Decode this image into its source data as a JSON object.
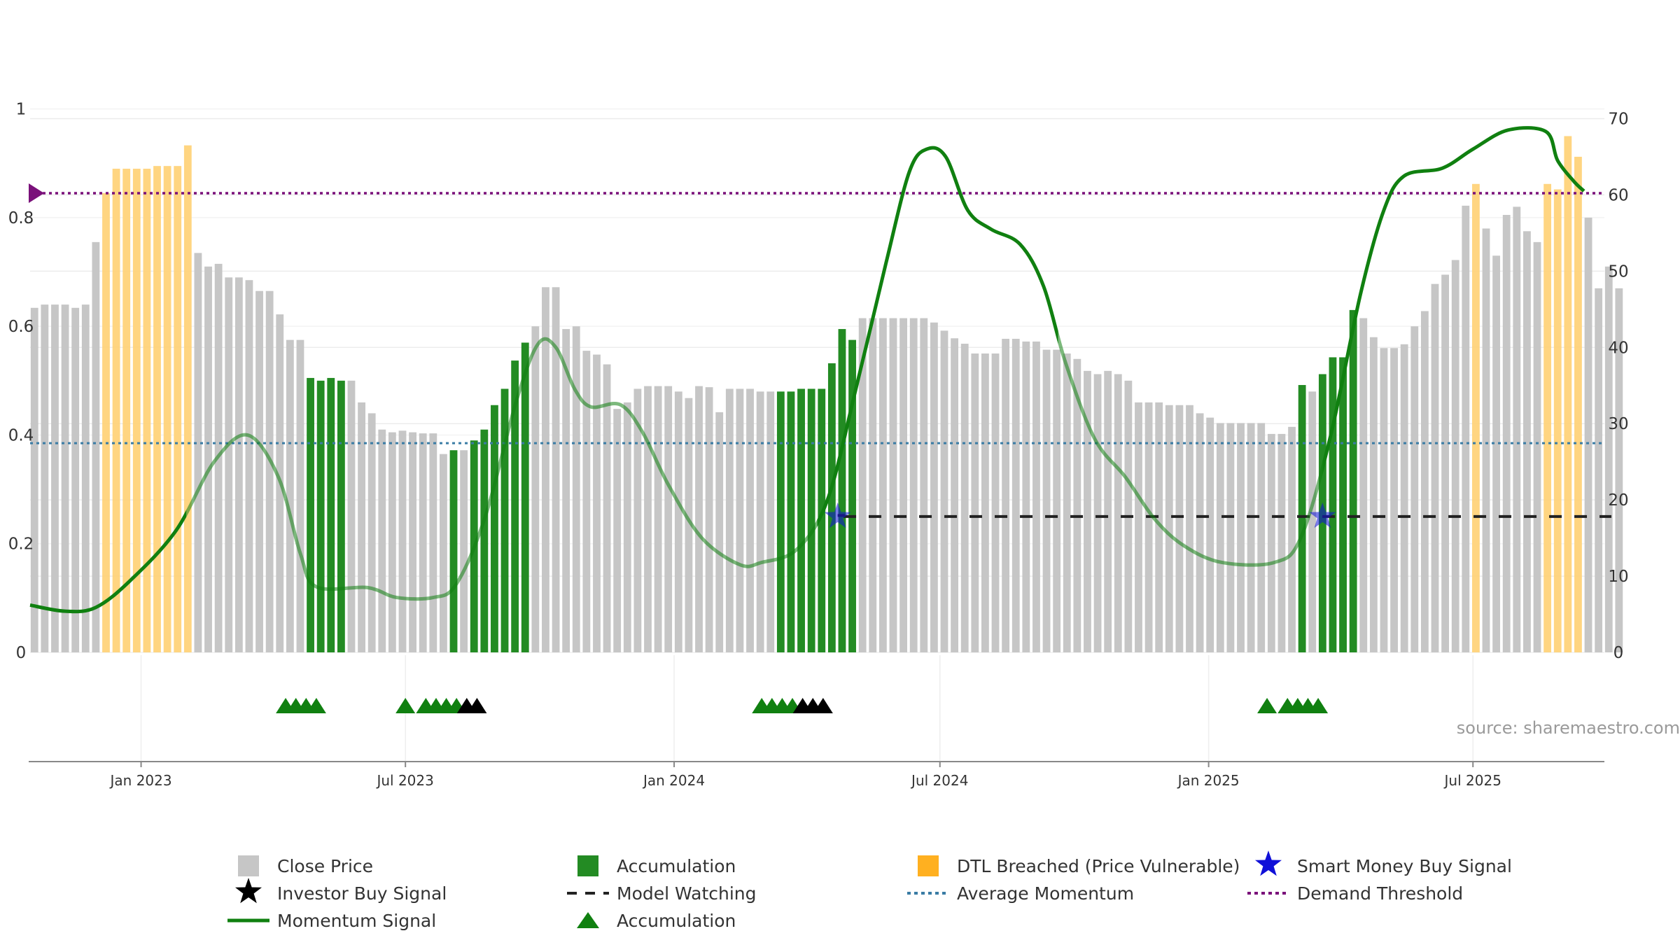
{
  "chart_data": {
    "type": "bar",
    "left_axis": {
      "ticks": [
        "0",
        "0.2",
        "0.4",
        "0.6",
        "0.8",
        "1"
      ],
      "values": [
        0,
        0.2,
        0.4,
        0.6,
        0.8,
        1
      ],
      "range": [
        0,
        1.1
      ]
    },
    "right_axis": {
      "ticks": [
        "0",
        "10",
        "20",
        "30",
        "40",
        "50",
        "60",
        "70"
      ],
      "values": [
        0,
        10,
        20,
        30,
        40,
        50,
        60,
        70
      ],
      "range": [
        0,
        78.4
      ]
    },
    "x_axis": {
      "range": [
        "2022-10-17",
        "2025-09-29"
      ],
      "ticks": [
        {
          "label": "Jan 2023",
          "date": "2023-01-01"
        },
        {
          "label": "Jul 2023",
          "date": "2023-07-01"
        },
        {
          "label": "Jan 2024",
          "date": "2024-01-01"
        },
        {
          "label": "Jul 2024",
          "date": "2024-07-01"
        },
        {
          "label": "Jan 2025",
          "date": "2025-01-01"
        },
        {
          "label": "Jul 2025",
          "date": "2025-07-01"
        }
      ]
    },
    "bars": {
      "start_date": "2022-10-20",
      "interval_days": 7,
      "values": [
        0.634,
        0.64,
        0.64,
        0.64,
        0.634,
        0.64,
        0.755,
        0.845,
        0.89,
        0.89,
        0.89,
        0.89,
        0.895,
        0.895,
        0.895,
        0.933,
        0.735,
        0.71,
        0.715,
        0.69,
        0.69,
        0.685,
        0.665,
        0.665,
        0.622,
        0.575,
        0.575,
        0.505,
        0.5,
        0.505,
        0.5,
        0.5,
        0.46,
        0.44,
        0.41,
        0.405,
        0.408,
        0.405,
        0.403,
        0.403,
        0.365,
        0.372,
        0.372,
        0.39,
        0.41,
        0.455,
        0.485,
        0.537,
        0.57,
        0.6,
        0.672,
        0.672,
        0.595,
        0.6,
        0.555,
        0.548,
        0.53,
        0.448,
        0.46,
        0.485,
        0.49,
        0.49,
        0.49,
        0.48,
        0.468,
        0.49,
        0.488,
        0.442,
        0.485,
        0.485,
        0.485,
        0.48,
        0.48,
        0.48,
        0.48,
        0.485,
        0.485,
        0.485,
        0.532,
        0.595,
        0.575,
        0.615,
        0.615,
        0.615,
        0.615,
        0.615,
        0.615,
        0.615,
        0.607,
        0.592,
        0.578,
        0.568,
        0.55,
        0.55,
        0.55,
        0.577,
        0.577,
        0.572,
        0.572,
        0.557,
        0.557,
        0.55,
        0.54,
        0.518,
        0.512,
        0.518,
        0.512,
        0.5,
        0.46,
        0.46,
        0.46,
        0.455,
        0.455,
        0.455,
        0.44,
        0.432,
        0.422,
        0.422,
        0.422,
        0.422,
        0.422,
        0.402,
        0.402,
        0.415,
        0.492,
        0.48,
        0.512,
        0.543,
        0.543,
        0.63,
        0.615,
        0.58,
        0.56,
        0.56,
        0.567,
        0.6,
        0.628,
        0.678,
        0.695,
        0.722,
        0.822,
        0.862,
        0.78,
        0.73,
        0.805,
        0.82,
        0.775,
        0.755,
        0.862,
        0.852,
        0.95,
        0.912,
        0.8,
        0.67,
        0.71,
        0.67
      ],
      "categories": [
        "G",
        "G",
        "G",
        "G",
        "G",
        "G",
        "G",
        "O",
        "O",
        "O",
        "O",
        "O",
        "O",
        "O",
        "O",
        "O",
        "G",
        "G",
        "G",
        "G",
        "G",
        "G",
        "G",
        "G",
        "G",
        "G",
        "G",
        "A",
        "A",
        "A",
        "A",
        "G",
        "G",
        "G",
        "G",
        "G",
        "G",
        "G",
        "G",
        "G",
        "G",
        "A",
        "G",
        "A",
        "A",
        "A",
        "A",
        "A",
        "A",
        "G",
        "G",
        "G",
        "G",
        "G",
        "G",
        "G",
        "G",
        "G",
        "G",
        "G",
        "G",
        "G",
        "G",
        "G",
        "G",
        "G",
        "G",
        "G",
        "G",
        "G",
        "G",
        "G",
        "G",
        "A",
        "A",
        "A",
        "A",
        "A",
        "A",
        "A",
        "A",
        "G",
        "G",
        "G",
        "G",
        "G",
        "G",
        "G",
        "G",
        "G",
        "G",
        "G",
        "G",
        "G",
        "G",
        "G",
        "G",
        "G",
        "G",
        "G",
        "G",
        "G",
        "G",
        "G",
        "G",
        "G",
        "G",
        "G",
        "G",
        "G",
        "G",
        "G",
        "G",
        "G",
        "G",
        "G",
        "G",
        "G",
        "G",
        "G",
        "G",
        "G",
        "G",
        "G",
        "A",
        "G",
        "A",
        "A",
        "A",
        "A",
        "G",
        "G",
        "G",
        "G",
        "G",
        "G",
        "G",
        "G",
        "G",
        "G",
        "G",
        "O",
        "G",
        "G",
        "G",
        "G",
        "G",
        "G",
        "O",
        "O",
        "O",
        "O",
        "G",
        "G",
        "G",
        "G"
      ]
    },
    "momentum": [
      {
        "d": "2022-10-17",
        "v": 6.2
      },
      {
        "d": "2022-11-10",
        "v": 5.4
      },
      {
        "d": "2022-12-01",
        "v": 5.9
      },
      {
        "d": "2022-12-25",
        "v": 9.5
      },
      {
        "d": "2023-01-25",
        "v": 16
      },
      {
        "d": "2023-02-20",
        "v": 25
      },
      {
        "d": "2023-03-15",
        "v": 28.5
      },
      {
        "d": "2023-04-05",
        "v": 23
      },
      {
        "d": "2023-04-20",
        "v": 13
      },
      {
        "d": "2023-05-01",
        "v": 8.6
      },
      {
        "d": "2023-06-05",
        "v": 8.5
      },
      {
        "d": "2023-06-25",
        "v": 7.2
      },
      {
        "d": "2023-07-20",
        "v": 7.2
      },
      {
        "d": "2023-08-05",
        "v": 9
      },
      {
        "d": "2023-08-25",
        "v": 18
      },
      {
        "d": "2023-09-15",
        "v": 33
      },
      {
        "d": "2023-09-30",
        "v": 40.5
      },
      {
        "d": "2023-10-12",
        "v": 40
      },
      {
        "d": "2023-10-25",
        "v": 34.5
      },
      {
        "d": "2023-11-05",
        "v": 32.2
      },
      {
        "d": "2023-11-25",
        "v": 32.5
      },
      {
        "d": "2023-12-10",
        "v": 29
      },
      {
        "d": "2023-12-28",
        "v": 22
      },
      {
        "d": "2024-01-20",
        "v": 15
      },
      {
        "d": "2024-02-15",
        "v": 11.5
      },
      {
        "d": "2024-03-01",
        "v": 11.8
      },
      {
        "d": "2024-03-25",
        "v": 13.5
      },
      {
        "d": "2024-04-15",
        "v": 20
      },
      {
        "d": "2024-05-05",
        "v": 35
      },
      {
        "d": "2024-05-25",
        "v": 51
      },
      {
        "d": "2024-06-10",
        "v": 63
      },
      {
        "d": "2024-06-22",
        "v": 66
      },
      {
        "d": "2024-07-05",
        "v": 65
      },
      {
        "d": "2024-07-20",
        "v": 58
      },
      {
        "d": "2024-08-05",
        "v": 55.5
      },
      {
        "d": "2024-08-25",
        "v": 53.5
      },
      {
        "d": "2024-09-10",
        "v": 48
      },
      {
        "d": "2024-09-25",
        "v": 38
      },
      {
        "d": "2024-10-15",
        "v": 28
      },
      {
        "d": "2024-11-05",
        "v": 23
      },
      {
        "d": "2024-11-25",
        "v": 17.5
      },
      {
        "d": "2024-12-15",
        "v": 14
      },
      {
        "d": "2025-01-10",
        "v": 11.8
      },
      {
        "d": "2025-02-15",
        "v": 11.8
      },
      {
        "d": "2025-03-05",
        "v": 15
      },
      {
        "d": "2025-03-25",
        "v": 28
      },
      {
        "d": "2025-04-15",
        "v": 47
      },
      {
        "d": "2025-05-01",
        "v": 58
      },
      {
        "d": "2025-05-15",
        "v": 62.5
      },
      {
        "d": "2025-06-10",
        "v": 63.5
      },
      {
        "d": "2025-07-01",
        "v": 66
      },
      {
        "d": "2025-07-25",
        "v": 68.5
      },
      {
        "d": "2025-08-20",
        "v": 68.3
      },
      {
        "d": "2025-08-28",
        "v": 64.5
      },
      {
        "d": "2025-09-08",
        "v": 61.8
      },
      {
        "d": "2025-09-15",
        "v": 60.5
      }
    ],
    "momentum_faded_segments": [
      [
        "2023-02-01",
        "2024-04-08"
      ],
      [
        "2024-09-20",
        "2025-03-20"
      ]
    ],
    "demand_threshold": 0.845,
    "average_momentum": 0.385,
    "model_watching": [
      {
        "start": "2024-04-22",
        "end": "2024-04-22",
        "y": 0.252
      },
      {
        "start": "2024-04-26",
        "end": "2025-09-29",
        "y": 0.25
      }
    ],
    "smart_money_signals": [
      {
        "d": "2024-04-22",
        "y": 0.25
      },
      {
        "d": "2025-03-20",
        "y": 0.25
      }
    ],
    "accumulation_markers": [
      "2023-04-10",
      "2023-04-17",
      "2023-04-24",
      "2023-05-01",
      "2023-07-01",
      "2023-07-15",
      "2023-07-22",
      "2023-07-29",
      "2023-08-05",
      "2024-03-01",
      "2024-03-08",
      "2024-03-15",
      "2024-03-22",
      "2025-02-10",
      "2025-02-24",
      "2025-03-03",
      "2025-03-10",
      "2025-03-17"
    ],
    "investor_buy_markers": [
      "2023-08-12",
      "2023-08-19",
      "2024-03-29",
      "2024-04-05",
      "2024-04-12"
    ],
    "colors": {
      "close_price": "#c6c6c6",
      "accumulation": "#238b23",
      "dtl_breached": "#ffd37a",
      "momentum": "#108010",
      "average_momentum": "#3a7ca5",
      "demand_threshold": "#7a117a",
      "smart_money": "#1010d8",
      "investor_buy": "#000000",
      "model_watching": "#222222"
    },
    "legend": [
      {
        "label": "Close Price",
        "icon": "gray-square"
      },
      {
        "label": "Accumulation",
        "icon": "green-square"
      },
      {
        "label": "DTL Breached (Price Vulnerable)",
        "icon": "orange-square"
      },
      {
        "label": "Smart Money Buy Signal",
        "icon": "blue-star"
      },
      {
        "label": "Investor Buy Signal",
        "icon": "black-star"
      },
      {
        "label": "Model Watching",
        "icon": "dashed-line"
      },
      {
        "label": "Average Momentum",
        "icon": "dotted-blue-line"
      },
      {
        "label": "Demand Threshold",
        "icon": "dotted-purple-line"
      },
      {
        "label": "Momentum Signal",
        "icon": "green-line"
      },
      {
        "label": "Accumulation",
        "icon": "green-triangle"
      }
    ],
    "source": "source: sharemaestro.com"
  }
}
